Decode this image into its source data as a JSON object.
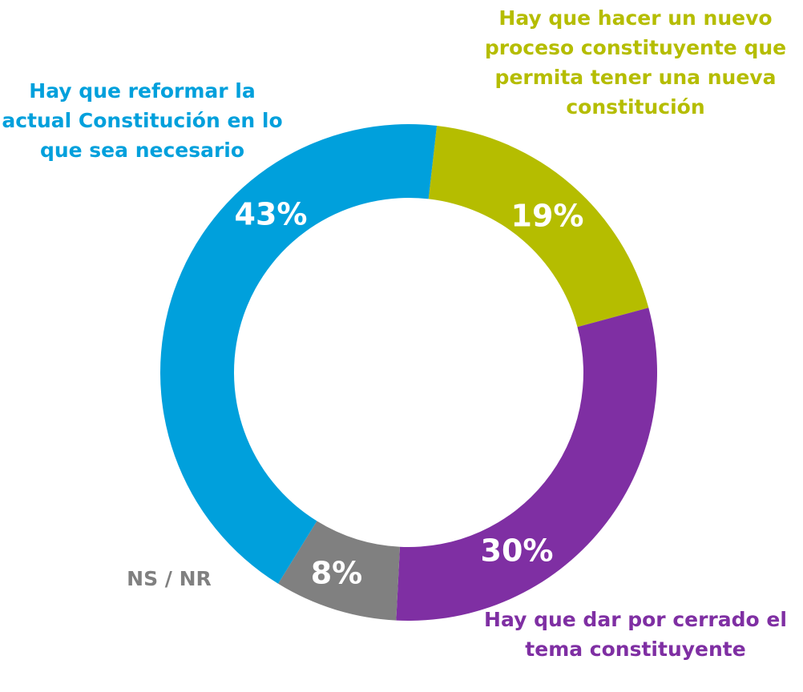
{
  "chart_data": {
    "type": "donut",
    "categories": [
      "Hay que hacer un nuevo proceso constituyente que permita tener una nueva constitución",
      "Hay que dar por cerrado el tema constituyente",
      "NS / NR",
      "Hay que reformar la actual Constitución en lo que sea necesario"
    ],
    "values": [
      19,
      30,
      8,
      43
    ],
    "value_labels": [
      "19%",
      "30%",
      "8%",
      "43%"
    ],
    "colors": [
      "#b5bd00",
      "#7f2fa3",
      "#808080",
      "#00a0dc"
    ]
  }
}
